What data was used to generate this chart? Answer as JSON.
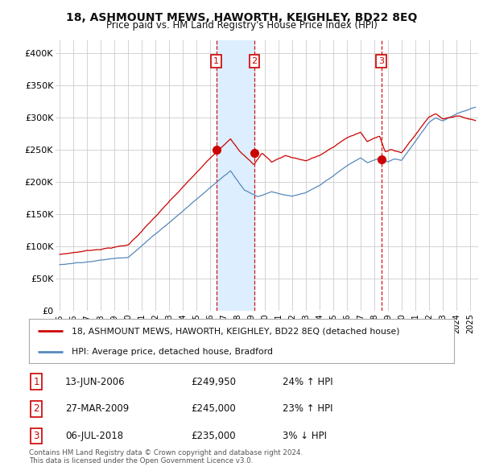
{
  "title": "18, ASHMOUNT MEWS, HAWORTH, KEIGHLEY, BD22 8EQ",
  "subtitle": "Price paid vs. HM Land Registry's House Price Index (HPI)",
  "ylim": [
    0,
    420000
  ],
  "yticks": [
    0,
    50000,
    100000,
    150000,
    200000,
    250000,
    300000,
    350000,
    400000
  ],
  "ytick_labels": [
    "£0",
    "£50K",
    "£100K",
    "£150K",
    "£200K",
    "£250K",
    "£300K",
    "£350K",
    "£400K"
  ],
  "sale_dates": [
    2006.45,
    2009.24,
    2018.51
  ],
  "sale_prices": [
    249950,
    245000,
    235000
  ],
  "sale_labels": [
    "1",
    "2",
    "3"
  ],
  "red_line_color": "#cc0000",
  "blue_line_color": "#5588bb",
  "shade_color": "#ddeeff",
  "vline_color": "#cc0000",
  "grid_color": "#cccccc",
  "legend_entries": [
    "18, ASHMOUNT MEWS, HAWORTH, KEIGHLEY, BD22 8EQ (detached house)",
    "HPI: Average price, detached house, Bradford"
  ],
  "table_rows": [
    [
      "1",
      "13-JUN-2006",
      "£249,950",
      "24% ↑ HPI"
    ],
    [
      "2",
      "27-MAR-2009",
      "£245,000",
      "23% ↑ HPI"
    ],
    [
      "3",
      "06-JUL-2018",
      "£235,000",
      "3% ↓ HPI"
    ]
  ],
  "footnote": "Contains HM Land Registry data © Crown copyright and database right 2024.\nThis data is licensed under the Open Government Licence v3.0.",
  "background_color": "#ffffff"
}
